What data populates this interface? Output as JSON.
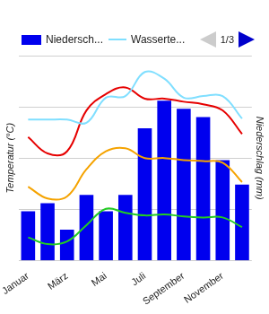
{
  "chart_data": {
    "type": "bar",
    "categories": [
      "Januar",
      null,
      "März",
      null,
      "Mai",
      null,
      "Juli",
      null,
      "September",
      null,
      "November",
      null
    ],
    "series": [
      {
        "name": "Niedersch...",
        "type": "bar",
        "color": "#0000ee",
        "axis": "y2",
        "values": [
          48,
          56,
          30,
          64,
          48,
          64,
          129,
          156,
          148,
          140,
          98,
          74
        ]
      },
      {
        "name": "Wasserte...",
        "type": "line",
        "color": "#80dfff",
        "values": [
          27.5,
          27.5,
          27.5,
          26.9,
          31.8,
          32.1,
          36.8,
          35.5,
          31.8,
          32.1,
          32.1,
          27.7
        ]
      },
      {
        "type": "line",
        "color": "#e60000",
        "values": [
          24.1,
          20.9,
          21.3,
          29.3,
          32.5,
          33.8,
          31.6,
          31.6,
          31.0,
          30.5,
          29.3,
          24.7
        ]
      },
      {
        "type": "line",
        "color": "#f5a300",
        "values": [
          14.4,
          12.1,
          12.5,
          17.8,
          21.3,
          21.9,
          20.0,
          20.0,
          19.6,
          19.4,
          19.1,
          15.3
        ]
      },
      {
        "type": "line",
        "color": "#22cc22",
        "values": [
          4.5,
          3.2,
          3.7,
          6.9,
          10.1,
          9.3,
          8.8,
          9.0,
          8.6,
          8.4,
          8.4,
          6.5
        ]
      }
    ],
    "y_label": "Temperatur (°C)",
    "y2_label": "Niederschlag (mm)",
    "ylim": [
      0,
      40
    ],
    "yticks": [
      0,
      10,
      20,
      30,
      40
    ],
    "y2lim": [
      0,
      200
    ],
    "y2ticks": [
      0,
      50,
      100,
      150,
      200
    ],
    "grid": true,
    "tick_labels": "x",
    "legend": "top",
    "legend_page": "1/3"
  }
}
